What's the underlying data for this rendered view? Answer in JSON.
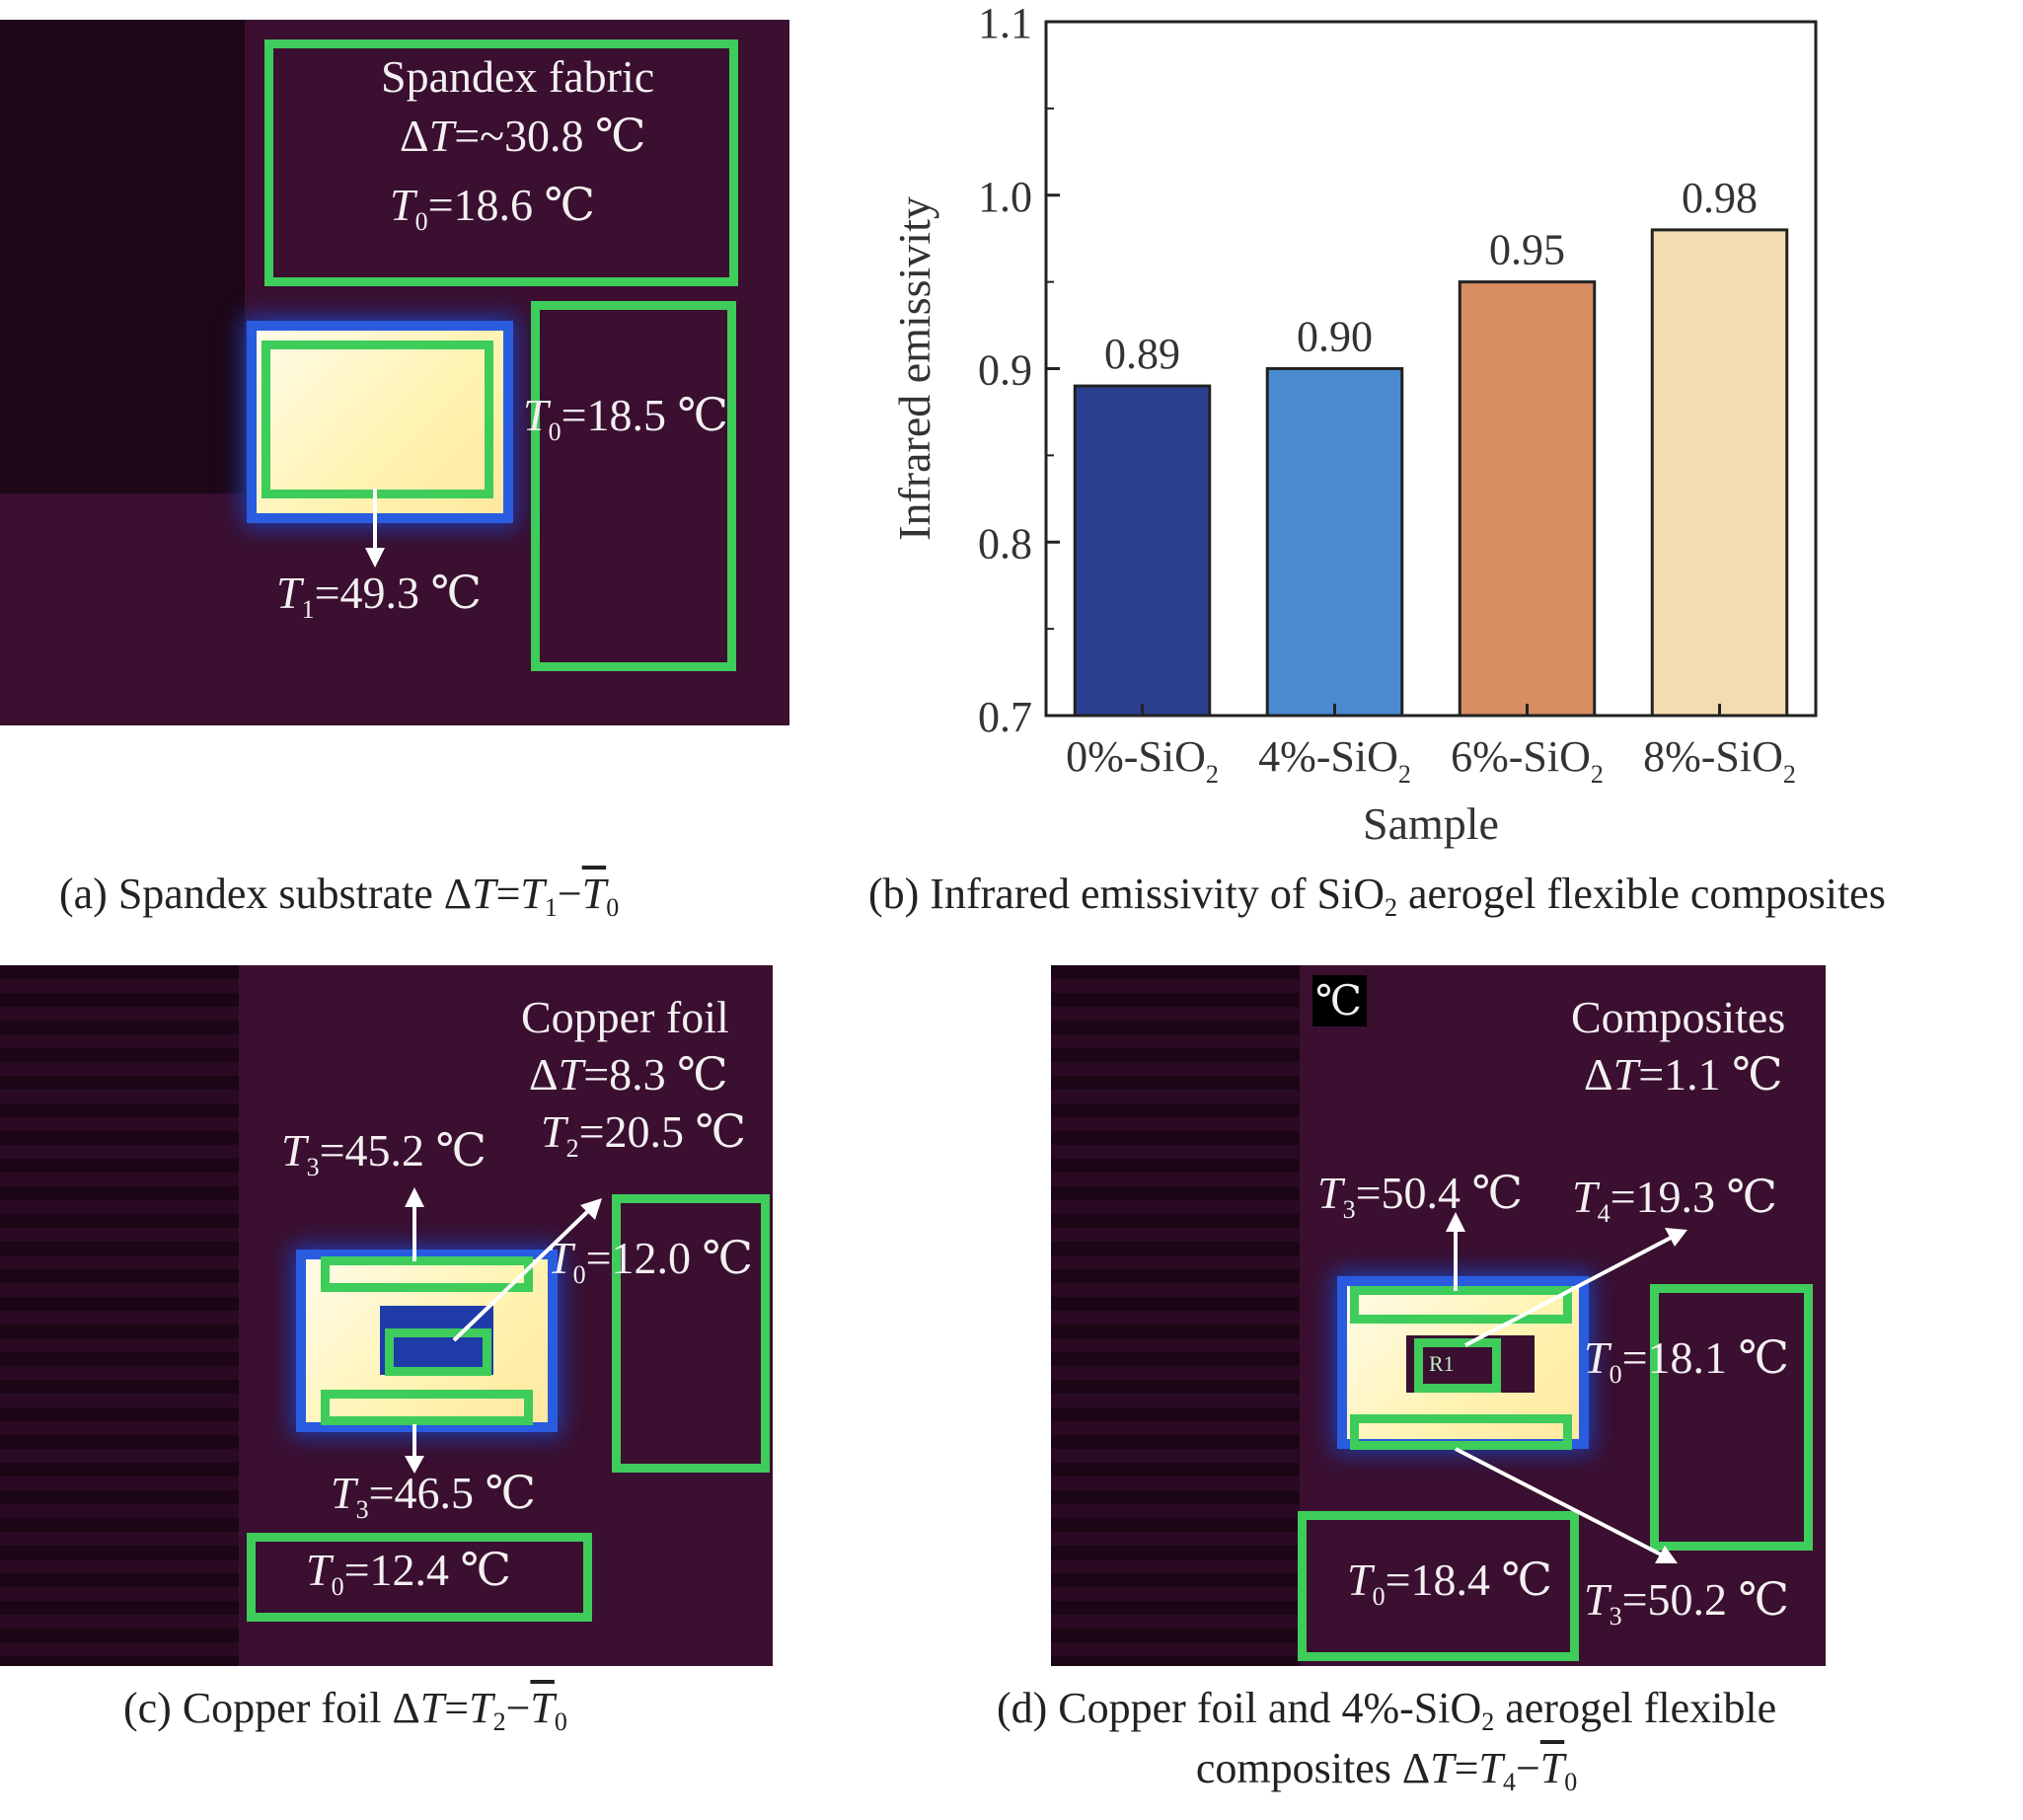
{
  "panel_a": {
    "title_line1": "Spandex fabric",
    "delta_prefix": "Δ",
    "delta_sym": "T",
    "delta_value": "=~30.8 ℃",
    "t0_top_sym": "T",
    "t0_top_sub": "0",
    "t0_top_value": "=18.6 ℃",
    "t0_right_sym": "T",
    "t0_right_sub": "0",
    "t0_right_value": "=18.5 ℃",
    "t1_sym": "T",
    "t1_sub": "1",
    "t1_value": "=49.3 ℃",
    "caption_prefix": "(a) Spandex substrate Δ",
    "caption_T": "T",
    "caption_eq": "=",
    "caption_T1": "T",
    "caption_s1": "1",
    "caption_minus": "−",
    "caption_T0": "T",
    "caption_s0": "0"
  },
  "panel_c": {
    "title_line1": "Copper foil",
    "delta_prefix": "Δ",
    "delta_sym": "T",
    "delta_value": "=8.3 ℃",
    "t2_sym": "T",
    "t2_sub": "2",
    "t2_value": "=20.5 ℃",
    "t3_top_sym": "T",
    "t3_top_sub": "3",
    "t3_top_value": "=45.2 ℃",
    "t0_right_sym": "T",
    "t0_right_sub": "0",
    "t0_right_value": "=12.0 ℃",
    "t3_bottom_sym": "T",
    "t3_bottom_sub": "3",
    "t3_bottom_value": "=46.5 ℃",
    "t0_bottom_sym": "T",
    "t0_bottom_sub": "0",
    "t0_bottom_value": "=12.4 ℃",
    "caption_prefix": "(c) Copper foil Δ",
    "caption_T": "T",
    "caption_eq": "=",
    "caption_T2": "T",
    "caption_s2": "2",
    "caption_minus": "−",
    "caption_T0": "T",
    "caption_s0": "0"
  },
  "panel_d": {
    "unit_tag": "℃",
    "title_line1": "Composites",
    "delta_prefix": "Δ",
    "delta_sym": "T",
    "delta_value": "=1.1 ℃",
    "t3_top_sym": "T",
    "t3_top_sub": "3",
    "t3_top_value": "=50.4 ℃",
    "t4_sym": "T",
    "t4_sub": "4",
    "t4_value": "=19.3 ℃",
    "t0_right_sym": "T",
    "t0_right_sub": "0",
    "t0_right_value": "=18.1 ℃",
    "t0_bottom_sym": "T",
    "t0_bottom_sub": "0",
    "t0_bottom_value": "=18.4 ℃",
    "t3_bottom_sym": "T",
    "t3_bottom_sub": "3",
    "t3_bottom_value": "=50.2 ℃",
    "r1_tag": "R1",
    "caption_line1_prefix": "(d) Copper foil and 4%-SiO",
    "caption_line1_sub": "2",
    "caption_line1_suffix": " aerogel flexible",
    "caption_line2_prefix": "composites Δ",
    "caption_T": "T",
    "caption_eq": "=",
    "caption_T4": "T",
    "caption_s4": "4",
    "caption_minus": "−",
    "caption_T0": "T",
    "caption_s0": "0"
  },
  "panel_b": {
    "caption_prefix": "(b) Infrared emissivity of SiO",
    "caption_sub": "2",
    "caption_suffix": " aerogel flexible composites"
  },
  "colors": {
    "bar1": "#2b3f8f",
    "bar2": "#4a8bd0",
    "bar3": "#d98d62",
    "bar4": "#f3ddb0",
    "box_green": "#3ecc5a",
    "thermal_bg": "#3a0f2f"
  },
  "chart_data": {
    "type": "bar",
    "categories": [
      "0%-SiO",
      "4%-SiO",
      "6%-SiO",
      "8%-SiO"
    ],
    "category_subscript": "2",
    "values": [
      0.89,
      0.9,
      0.95,
      0.98
    ],
    "value_labels": [
      "0.89",
      "0.90",
      "0.95",
      "0.98"
    ],
    "xlabel": "Sample",
    "ylabel": "Infrared emissivity",
    "ylim": [
      0.7,
      1.1
    ],
    "yticks": [
      0.7,
      0.8,
      0.9,
      1.0,
      1.1
    ],
    "ytick_labels": [
      "0.7",
      "0.8",
      "0.9",
      "1.0",
      "1.1"
    ]
  }
}
